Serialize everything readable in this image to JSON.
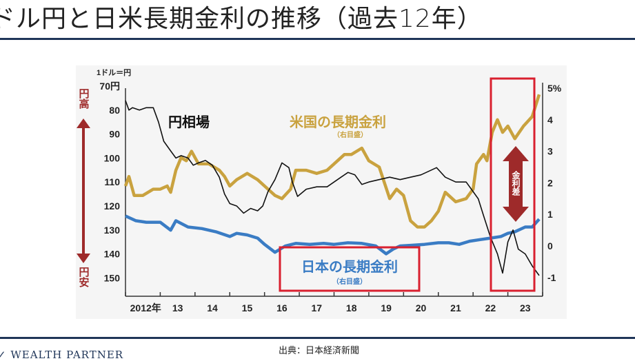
{
  "slide": {
    "title": "ドル円と日米長期金利の推移（過去12年）",
    "source": "出典：日本経済新聞",
    "logo_text": "WEALTH PARTNER"
  },
  "colors": {
    "yen": "#111111",
    "us": "#c9a23f",
    "jp": "#3a7cc4",
    "accent_red": "#d9202f",
    "arrow": "#9e2a2a",
    "rule": "#1f3558"
  },
  "chart_data": {
    "type": "line",
    "left_axis": {
      "unit_label": "1ドル＝円",
      "ticks": [
        "70円",
        "80",
        "90",
        "100",
        "110",
        "120",
        "130",
        "140",
        "150"
      ],
      "ylim": [
        70,
        155
      ],
      "inverted": true,
      "top_note": "円高",
      "bottom_note": "円安"
    },
    "right_axis": {
      "ticks": [
        "5%",
        "4",
        "3",
        "2",
        "1",
        "0",
        "-1"
      ],
      "ylim": [
        -1.6,
        5
      ]
    },
    "x_axis": {
      "ticks": [
        "2012年",
        "13",
        "14",
        "15",
        "16",
        "17",
        "18",
        "19",
        "20",
        "21",
        "22",
        "23"
      ],
      "xlim": [
        2012,
        2024
      ]
    },
    "series": [
      {
        "name": "円相場",
        "axis": "left",
        "color": "#111111",
        "x": [
          2012.0,
          2012.1,
          2012.2,
          2012.4,
          2012.6,
          2012.8,
          2012.95,
          2013.1,
          2013.3,
          2013.45,
          2013.6,
          2013.8,
          2013.95,
          2014.1,
          2014.3,
          2014.5,
          2014.7,
          2014.85,
          2015.0,
          2015.2,
          2015.4,
          2015.6,
          2015.8,
          2015.95,
          2016.1,
          2016.3,
          2016.5,
          2016.7,
          2016.8,
          2016.95,
          2017.2,
          2017.5,
          2017.8,
          2018.0,
          2018.2,
          2018.4,
          2018.6,
          2018.8,
          2019.0,
          2019.3,
          2019.6,
          2019.9,
          2020.2,
          2020.5,
          2020.8,
          2020.95,
          2021.2,
          2021.5,
          2021.8,
          2022.0,
          2022.15,
          2022.3,
          2022.5,
          2022.7,
          2022.85,
          2023.0,
          2023.15,
          2023.3,
          2023.5,
          2023.7,
          2023.9
        ],
        "y": [
          76,
          80,
          79,
          80,
          79,
          79,
          85,
          93,
          97,
          100,
          99,
          100,
          103,
          102,
          101,
          103,
          108,
          115,
          119,
          120,
          123,
          121,
          122,
          120,
          114,
          109,
          102,
          104,
          110,
          116,
          113,
          112,
          112,
          110,
          108,
          106,
          107,
          111,
          110,
          109,
          108,
          109,
          108,
          107,
          105,
          104,
          108,
          110,
          110,
          114,
          117,
          124,
          133,
          140,
          148,
          135,
          130,
          138,
          140,
          145,
          149
        ]
      },
      {
        "name": "米国の長期金利",
        "axis": "right",
        "color": "#c9a23f",
        "x": [
          2012.0,
          2012.1,
          2012.25,
          2012.5,
          2012.8,
          2013.0,
          2013.2,
          2013.3,
          2013.45,
          2013.6,
          2013.75,
          2013.9,
          2014.1,
          2014.4,
          2014.7,
          2014.85,
          2015.0,
          2015.2,
          2015.5,
          2015.8,
          2016.0,
          2016.3,
          2016.5,
          2016.75,
          2016.9,
          2017.2,
          2017.5,
          2017.8,
          2018.0,
          2018.3,
          2018.5,
          2018.8,
          2019.0,
          2019.3,
          2019.6,
          2019.8,
          2020.0,
          2020.2,
          2020.4,
          2020.6,
          2020.8,
          2021.0,
          2021.2,
          2021.5,
          2021.8,
          2022.0,
          2022.1,
          2022.3,
          2022.4,
          2022.55,
          2022.7,
          2022.85,
          2023.0,
          2023.2,
          2023.45,
          2023.7,
          2023.9
        ],
        "y": [
          1.9,
          2.2,
          1.6,
          1.6,
          1.8,
          1.8,
          1.9,
          1.7,
          2.4,
          2.8,
          2.7,
          3.0,
          2.6,
          2.6,
          2.4,
          2.2,
          1.9,
          2.1,
          2.3,
          2.1,
          1.9,
          1.6,
          1.5,
          1.8,
          2.4,
          2.4,
          2.3,
          2.4,
          2.6,
          2.9,
          2.9,
          3.1,
          2.7,
          2.5,
          1.5,
          1.8,
          1.6,
          0.8,
          0.6,
          0.6,
          0.8,
          1.1,
          1.7,
          1.4,
          1.5,
          1.8,
          2.6,
          2.9,
          2.7,
          3.6,
          4.0,
          3.6,
          3.8,
          3.4,
          3.8,
          4.1,
          4.8
        ]
      },
      {
        "name": "日本の長期金利",
        "axis": "right",
        "color": "#3a7cc4",
        "x": [
          2012.0,
          2012.3,
          2012.6,
          2013.0,
          2013.3,
          2013.45,
          2013.8,
          2014.2,
          2014.6,
          2015.0,
          2015.2,
          2015.5,
          2015.8,
          2016.0,
          2016.3,
          2016.6,
          2016.9,
          2017.3,
          2017.7,
          2018.0,
          2018.4,
          2018.8,
          2019.2,
          2019.5,
          2019.7,
          2019.9,
          2020.2,
          2020.6,
          2021.0,
          2021.3,
          2021.6,
          2021.9,
          2022.2,
          2022.5,
          2022.8,
          2023.0,
          2023.2,
          2023.5,
          2023.7,
          2023.9
        ],
        "y": [
          0.95,
          0.8,
          0.75,
          0.75,
          0.5,
          0.8,
          0.6,
          0.55,
          0.45,
          0.3,
          0.4,
          0.35,
          0.25,
          0.05,
          -0.2,
          0.0,
          0.08,
          0.05,
          0.08,
          0.05,
          0.1,
          0.08,
          0.0,
          -0.25,
          -0.1,
          0.0,
          0.02,
          0.05,
          0.1,
          0.1,
          0.05,
          0.15,
          0.2,
          0.25,
          0.3,
          0.4,
          0.45,
          0.6,
          0.6,
          0.85
        ]
      }
    ],
    "annotations": [
      {
        "text": "円相場",
        "color": "#111111"
      },
      {
        "text": "米国の長期金利",
        "sub": "（右目盛）",
        "color": "#c9a23f"
      },
      {
        "text": "日本の長期金利",
        "sub": "（右目盛）",
        "color": "#3a7cc4"
      },
      {
        "text": "金利差",
        "color": "#ffffff"
      }
    ],
    "grid": false,
    "legend": "none"
  }
}
